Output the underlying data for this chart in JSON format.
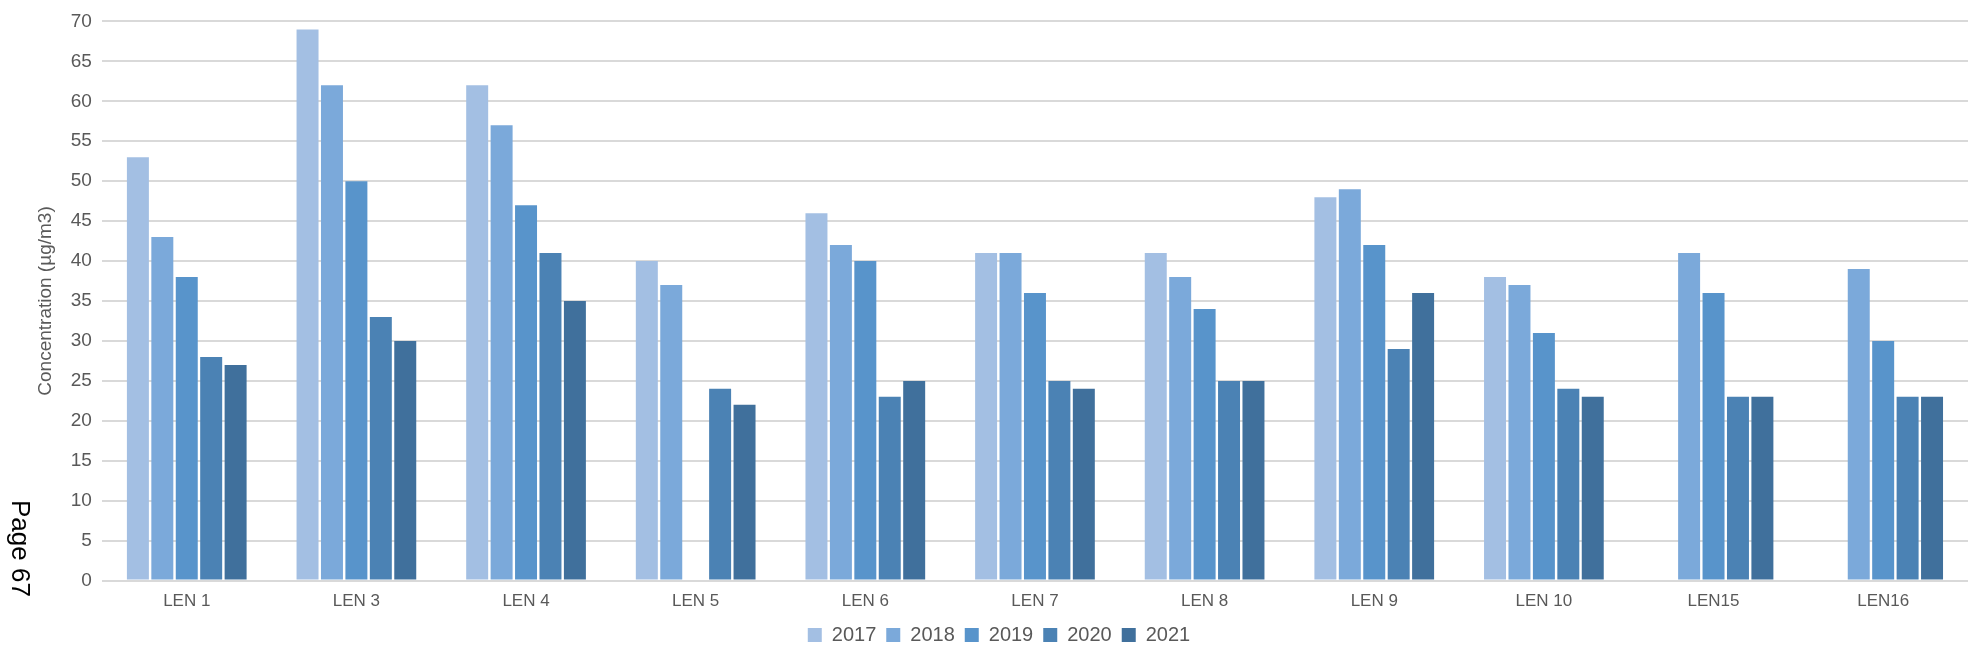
{
  "chart_data": {
    "type": "bar",
    "ylabel": "Concentration (µg/m3)",
    "categories": [
      "LEN 1",
      "LEN 3",
      "LEN 4",
      "LEN 5",
      "LEN 6",
      "LEN 7",
      "LEN 8",
      "LEN 9",
      "LEN 10",
      "LEN15",
      "LEN16"
    ],
    "series": [
      {
        "name": "2017",
        "color": "#a3bfe3",
        "values": [
          53,
          69,
          62,
          40,
          46,
          41,
          41,
          48,
          38,
          null,
          null
        ]
      },
      {
        "name": "2018",
        "color": "#7ba9da",
        "values": [
          43,
          62,
          57,
          37,
          42,
          41,
          38,
          49,
          37,
          41,
          39
        ]
      },
      {
        "name": "2019",
        "color": "#5894cb",
        "values": [
          38,
          50,
          47,
          null,
          40,
          36,
          34,
          42,
          31,
          36,
          30
        ]
      },
      {
        "name": "2020",
        "color": "#4b82b4",
        "values": [
          28,
          33,
          41,
          24,
          23,
          25,
          25,
          29,
          24,
          23,
          23
        ]
      },
      {
        "name": "2021",
        "color": "#40709c",
        "values": [
          27,
          30,
          35,
          22,
          25,
          24,
          25,
          36,
          23,
          23,
          23
        ]
      }
    ],
    "ylim": [
      0,
      70
    ],
    "yticks": [
      0,
      5,
      10,
      15,
      20,
      25,
      30,
      35,
      40,
      45,
      50,
      55,
      60,
      65,
      70
    ],
    "grid": "y",
    "legend": "bottom",
    "annotations": [
      "Page 67"
    ]
  }
}
